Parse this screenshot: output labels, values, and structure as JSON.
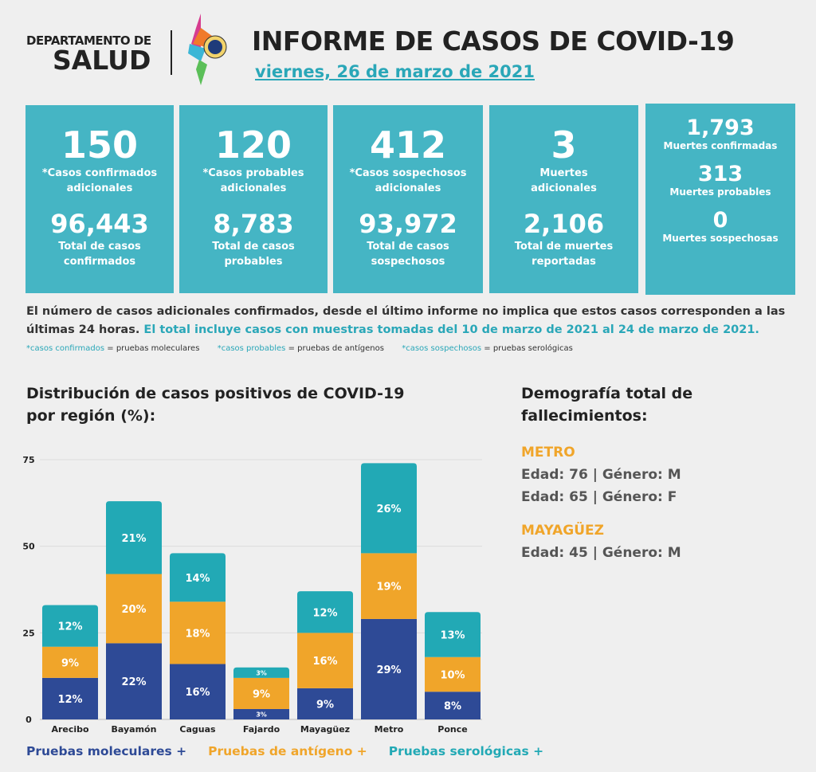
{
  "header": {
    "dept_line1": "DEPARTAMENTO DE",
    "dept_line2": "SALUD",
    "title": "INFORME DE CASOS DE COVID-19",
    "date": "viernes, 26 de marzo de 2021"
  },
  "boxes": [
    {
      "big": "150",
      "big_label1": "*Casos confirmados",
      "big_label2": "adicionales",
      "total": "96,443",
      "total_label1": "Total de casos",
      "total_label2": "confirmados"
    },
    {
      "big": "120",
      "big_label1": "*Casos probables",
      "big_label2": "adicionales",
      "total": "8,783",
      "total_label1": "Total de casos",
      "total_label2": "probables"
    },
    {
      "big": "412",
      "big_label1": "*Casos sospechosos",
      "big_label2": "adicionales",
      "total": "93,972",
      "total_label1": "Total de casos",
      "total_label2": "sospechosos"
    },
    {
      "big": "3",
      "big_label1": "Muertes",
      "big_label2": "adicionales",
      "total": "2,106",
      "total_label1": "Total de muertes",
      "total_label2": "reportadas"
    }
  ],
  "deaths_box": [
    {
      "value": "1,793",
      "label": "Muertes confirmadas"
    },
    {
      "value": "313",
      "label": "Muertes probables"
    },
    {
      "value": "0",
      "label": "Muertes sospechosas"
    }
  ],
  "note": {
    "text": "El número de casos adicionales confirmados, desde el último informe no implica que estos casos corresponden a las últimas 24 horas.",
    "highlight": "El total incluye casos con muestras tomadas del 10 de marzo de 2021 al 24 de marzo de 2021."
  },
  "definitions": [
    {
      "term": "*casos confirmados",
      "def": "= pruebas moleculares"
    },
    {
      "term": "*casos probables",
      "def": "= pruebas de antígenos"
    },
    {
      "term": "*casos sospechosos",
      "def": "= pruebas serológicas"
    }
  ],
  "demography": {
    "title": "Demografía total de fallecimientos:",
    "regions": [
      {
        "name": "METRO",
        "rows": [
          "Edad: 76 | Género: M",
          "Edad: 65 | Género: F"
        ]
      },
      {
        "name": "MAYAGÜEZ",
        "rows": [
          "Edad: 45 | Género: M"
        ]
      }
    ]
  },
  "colors": {
    "teal_box": "#45b5c4",
    "molecular": "#2e4a96",
    "antigen": "#f0a52a",
    "serologic": "#22a9b5"
  },
  "chart_data": {
    "type": "bar",
    "stacked": true,
    "title": "Distribución de casos positivos de COVID-19 por región (%):",
    "categories": [
      "Arecibo",
      "Bayamón",
      "Caguas",
      "Fajardo",
      "Mayagüez",
      "Metro",
      "Ponce"
    ],
    "series": [
      {
        "name": "Pruebas moleculares +",
        "color": "#2e4a96",
        "values": [
          12,
          22,
          16,
          3,
          9,
          29,
          8
        ]
      },
      {
        "name": "Pruebas de antígeno +",
        "color": "#f0a52a",
        "values": [
          9,
          20,
          18,
          9,
          16,
          19,
          10
        ]
      },
      {
        "name": "Pruebas serológicas +",
        "color": "#22a9b5",
        "values": [
          12,
          21,
          14,
          3,
          12,
          26,
          13
        ]
      }
    ],
    "yticks": [
      0,
      25,
      50,
      75
    ],
    "ylim": [
      0,
      75
    ],
    "grid": true,
    "legend": "bottom"
  }
}
